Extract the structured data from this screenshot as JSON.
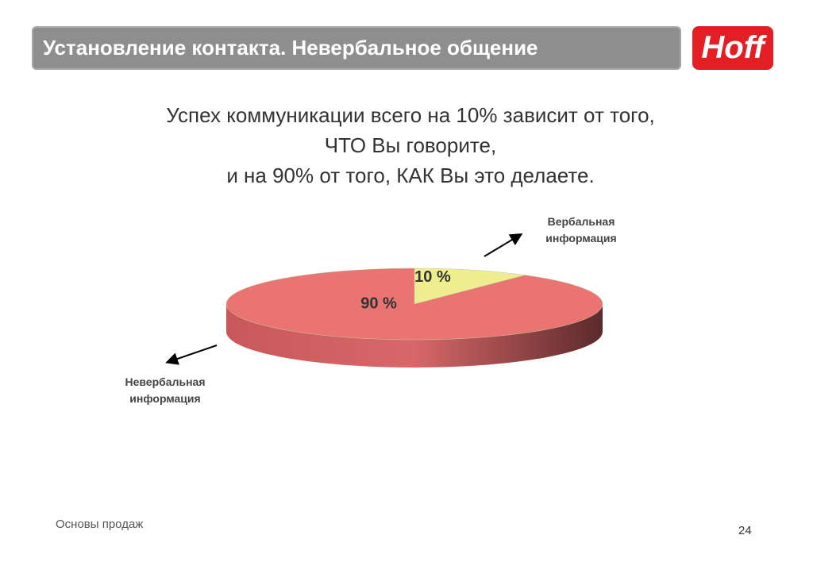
{
  "header": {
    "title": "Установление контакта. Невербальное общение",
    "logo": "Hoff"
  },
  "statement": [
    "Успех коммуникации всего на 10% зависит от того,",
    "ЧТО Вы говорите,",
    "и на 90% от того, КАК Вы это делаете."
  ],
  "chart_data": {
    "type": "pie",
    "categories": [
      "Вербальная информация",
      "Невербальная информация"
    ],
    "values": [
      10,
      90
    ],
    "value_labels": [
      "10 %",
      "90 %"
    ],
    "colors": [
      "#eeee8e",
      "#e97472"
    ]
  },
  "footer": {
    "text": "Основы продаж",
    "page": 24
  }
}
